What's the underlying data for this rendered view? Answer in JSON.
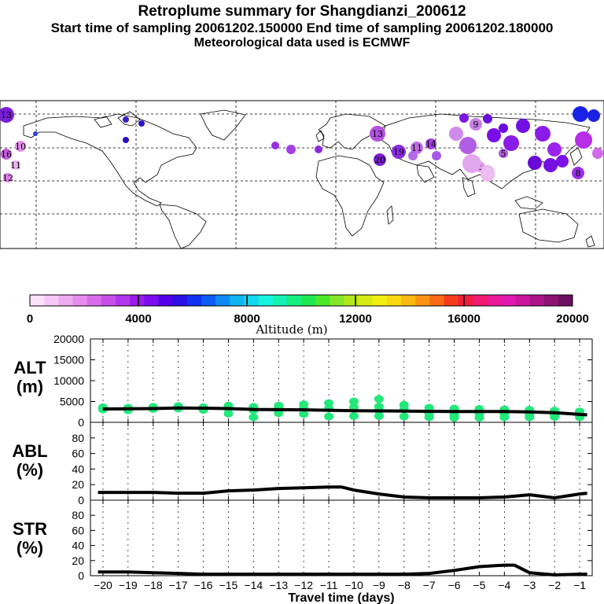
{
  "header": {
    "title": "Retroplume summary for Shangdianzi_200612",
    "sampling": "Start time of sampling 20061202.150000     End time of sampling 20061202.180000",
    "met": "Meteorological data used is ECMWF"
  },
  "colors": {
    "point": "#22e87a",
    "line": "#000000",
    "map_bg": "#ffffff"
  },
  "map": {
    "description_labels": [
      "13",
      "9",
      "16",
      "10",
      "11",
      "12",
      "13",
      "11",
      "19",
      "20",
      "14",
      "12",
      "8",
      "9",
      "13"
    ],
    "clusters": [
      {
        "label": "13",
        "color": "#7a1fd6"
      },
      {
        "label": "16",
        "color": "#c25cd9"
      },
      {
        "label": "10",
        "color": "#e08fe8"
      },
      {
        "label": "11",
        "color": "#e8b3ee"
      },
      {
        "label": "12",
        "color": "#d97fe5"
      },
      {
        "label": "13",
        "color": "#b44fe0"
      },
      {
        "label": "11",
        "color": "#c06ae0"
      },
      {
        "label": "19",
        "color": "#8a2be2"
      },
      {
        "label": "20",
        "color": "#7b1fd0"
      },
      {
        "label": "14",
        "color": "#a73ee6"
      },
      {
        "label": "8",
        "color": "#9b2ee5"
      },
      {
        "label": "9",
        "color": "#c980e5"
      },
      {
        "label": "2",
        "color": "#e0a0ec"
      },
      {
        "label": "1",
        "color": "#eab8f0"
      },
      {
        "label": "5",
        "color": "#b35de0"
      }
    ]
  },
  "colorbar": {
    "ticks": [
      "0",
      "4000",
      "8000",
      "12000",
      "16000",
      "20000"
    ],
    "label": "Altitude (m)",
    "min": 0,
    "max": 20000,
    "colors": [
      "#fbe3fb",
      "#f5c8f5",
      "#eeaaf0",
      "#e68ced",
      "#d96ceb",
      "#c850ea",
      "#b135ea",
      "#9a1ce8",
      "#7e0cf0",
      "#5200e8",
      "#2a10e6",
      "#1030f2",
      "#0d5cf5",
      "#0e8af5",
      "#10b4f2",
      "#13d8ee",
      "#14f4e0",
      "#14f2b4",
      "#16ef80",
      "#1ee850",
      "#4ce82a",
      "#86e62a",
      "#b4e61e",
      "#d8ea14",
      "#f2ee10",
      "#fad810",
      "#fbb810",
      "#fa9412",
      "#f86a16",
      "#f43c1a",
      "#f01e3c",
      "#f01a70",
      "#ea1898",
      "#e018b0",
      "#c8169c",
      "#aa1488",
      "#8c1274",
      "#6e1060"
    ]
  },
  "chart_data": [
    {
      "type": "scatter",
      "panel": "ALT",
      "ylabel_lines": [
        "ALT",
        "(m)"
      ],
      "ylim": [
        0,
        20000
      ],
      "yticks": [
        "0",
        "5000",
        "10000",
        "15000",
        "20000"
      ],
      "xlim": [
        -20.5,
        -0.5
      ],
      "series": [
        {
          "name": "particles",
          "points": [
            {
              "x": -20,
              "y": 3600
            },
            {
              "x": -20,
              "y": 3100
            },
            {
              "x": -19,
              "y": 3500
            },
            {
              "x": -19,
              "y": 2900
            },
            {
              "x": -18,
              "y": 3700
            },
            {
              "x": -18,
              "y": 3200
            },
            {
              "x": -17,
              "y": 3900
            },
            {
              "x": -17,
              "y": 3300
            },
            {
              "x": -16,
              "y": 3600
            },
            {
              "x": -16,
              "y": 3000
            },
            {
              "x": -15,
              "y": 4000
            },
            {
              "x": -15,
              "y": 3300
            },
            {
              "x": -15,
              "y": 2100
            },
            {
              "x": -14,
              "y": 3700
            },
            {
              "x": -14,
              "y": 2900
            },
            {
              "x": -14,
              "y": 1200
            },
            {
              "x": -13,
              "y": 4000
            },
            {
              "x": -13,
              "y": 3300
            },
            {
              "x": -13,
              "y": 2200
            },
            {
              "x": -12,
              "y": 4300
            },
            {
              "x": -12,
              "y": 3400
            },
            {
              "x": -12,
              "y": 2000
            },
            {
              "x": -11,
              "y": 4600
            },
            {
              "x": -11,
              "y": 3300
            },
            {
              "x": -11,
              "y": 1400
            },
            {
              "x": -10,
              "y": 5000
            },
            {
              "x": -10,
              "y": 3600
            },
            {
              "x": -10,
              "y": 1500
            },
            {
              "x": -9,
              "y": 5600
            },
            {
              "x": -9,
              "y": 3800
            },
            {
              "x": -9,
              "y": 2800
            },
            {
              "x": -9,
              "y": 1500
            },
            {
              "x": -8,
              "y": 4200
            },
            {
              "x": -8,
              "y": 3100
            },
            {
              "x": -8,
              "y": 1400
            },
            {
              "x": -7,
              "y": 3500
            },
            {
              "x": -7,
              "y": 2100
            },
            {
              "x": -7,
              "y": 1200
            },
            {
              "x": -6,
              "y": 3300
            },
            {
              "x": -6,
              "y": 1700
            },
            {
              "x": -6,
              "y": 1100
            },
            {
              "x": -5,
              "y": 3200
            },
            {
              "x": -5,
              "y": 2100
            },
            {
              "x": -5,
              "y": 1100
            },
            {
              "x": -4,
              "y": 3100
            },
            {
              "x": -4,
              "y": 2100
            },
            {
              "x": -4,
              "y": 1200
            },
            {
              "x": -3,
              "y": 3000
            },
            {
              "x": -3,
              "y": 1800
            },
            {
              "x": -3,
              "y": 1200
            },
            {
              "x": -2,
              "y": 2800
            },
            {
              "x": -2,
              "y": 1800
            },
            {
              "x": -2,
              "y": 1300
            },
            {
              "x": -1,
              "y": 2600
            },
            {
              "x": -1,
              "y": 1800
            },
            {
              "x": -1,
              "y": 1200
            }
          ]
        },
        {
          "name": "mean",
          "line": [
            {
              "x": -20,
              "y": 3200
            },
            {
              "x": -18,
              "y": 3300
            },
            {
              "x": -17,
              "y": 3450
            },
            {
              "x": -16,
              "y": 3400
            },
            {
              "x": -15,
              "y": 3300
            },
            {
              "x": -14,
              "y": 3100
            },
            {
              "x": -12,
              "y": 3000
            },
            {
              "x": -10,
              "y": 2800
            },
            {
              "x": -8,
              "y": 2700
            },
            {
              "x": -6,
              "y": 2600
            },
            {
              "x": -4,
              "y": 2600
            },
            {
              "x": -3,
              "y": 2500
            },
            {
              "x": -2,
              "y": 2300
            },
            {
              "x": -1,
              "y": 1900
            },
            {
              "x": -0.7,
              "y": 1800
            }
          ]
        }
      ]
    },
    {
      "type": "line",
      "panel": "ABL",
      "ylabel_lines": [
        "ABL",
        "(%)"
      ],
      "ylim": [
        0,
        100
      ],
      "yticks": [
        "0",
        "20",
        "40",
        "60",
        "80"
      ],
      "xlim": [
        -20.5,
        -0.5
      ],
      "series": [
        {
          "name": "ABL fraction",
          "line": [
            {
              "x": -20.2,
              "y": 10
            },
            {
              "x": -19,
              "y": 10
            },
            {
              "x": -18,
              "y": 10
            },
            {
              "x": -17,
              "y": 9
            },
            {
              "x": -16,
              "y": 9
            },
            {
              "x": -15,
              "y": 12
            },
            {
              "x": -14,
              "y": 13
            },
            {
              "x": -13,
              "y": 15
            },
            {
              "x": -12,
              "y": 16
            },
            {
              "x": -11,
              "y": 17
            },
            {
              "x": -10.5,
              "y": 17
            },
            {
              "x": -10,
              "y": 13
            },
            {
              "x": -9,
              "y": 8
            },
            {
              "x": -8,
              "y": 4
            },
            {
              "x": -7,
              "y": 3
            },
            {
              "x": -6,
              "y": 3
            },
            {
              "x": -5,
              "y": 3
            },
            {
              "x": -4,
              "y": 4
            },
            {
              "x": -3,
              "y": 7
            },
            {
              "x": -2,
              "y": 3
            },
            {
              "x": -1,
              "y": 8
            },
            {
              "x": -0.7,
              "y": 9
            }
          ]
        }
      ]
    },
    {
      "type": "line",
      "panel": "STR",
      "ylabel_lines": [
        "STR",
        "(%)"
      ],
      "ylim": [
        0,
        100
      ],
      "yticks": [
        "0",
        "20",
        "40",
        "60",
        "80"
      ],
      "xlim": [
        -20.5,
        -0.5
      ],
      "xlabel": "Travel time (days)",
      "xticks": [
        "-20",
        "-19",
        "-18",
        "-17",
        "-16",
        "-15",
        "-14",
        "-13",
        "-12",
        "-11",
        "-10",
        "-9",
        "-8",
        "-7",
        "-6",
        "-5",
        "-4",
        "-3",
        "-2",
        "-1"
      ],
      "series": [
        {
          "name": "STR fraction",
          "line": [
            {
              "x": -20.2,
              "y": 5
            },
            {
              "x": -19,
              "y": 5
            },
            {
              "x": -18,
              "y": 4
            },
            {
              "x": -17,
              "y": 3
            },
            {
              "x": -16,
              "y": 2
            },
            {
              "x": -14,
              "y": 2
            },
            {
              "x": -12,
              "y": 2
            },
            {
              "x": -10,
              "y": 2
            },
            {
              "x": -8,
              "y": 2
            },
            {
              "x": -7,
              "y": 3
            },
            {
              "x": -6,
              "y": 7
            },
            {
              "x": -5,
              "y": 12
            },
            {
              "x": -4,
              "y": 14
            },
            {
              "x": -3.6,
              "y": 14
            },
            {
              "x": -3,
              "y": 4
            },
            {
              "x": -2,
              "y": 1
            },
            {
              "x": -1,
              "y": 2
            },
            {
              "x": -0.7,
              "y": 2
            }
          ]
        }
      ]
    }
  ]
}
